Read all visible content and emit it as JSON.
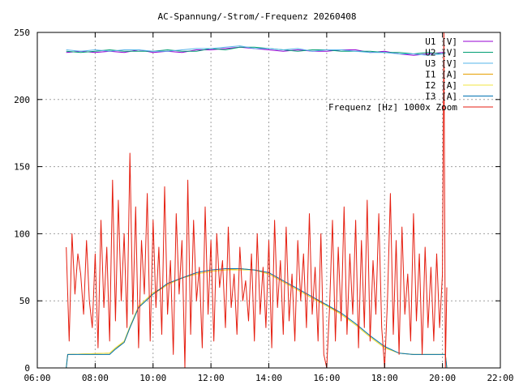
{
  "chart_data": {
    "type": "line",
    "title": "AC-Spannung/-Strom/-Frequenz 20260408",
    "xlabel": "",
    "ylabel": "",
    "xlim": [
      6,
      22
    ],
    "ylim": [
      0,
      250
    ],
    "grid": true,
    "legend_position": "top-right",
    "x_ticks": [
      {
        "value": 6,
        "label": "06:00"
      },
      {
        "value": 8,
        "label": "08:00"
      },
      {
        "value": 10,
        "label": "10:00"
      },
      {
        "value": 12,
        "label": "12:00"
      },
      {
        "value": 14,
        "label": "14:00"
      },
      {
        "value": 16,
        "label": "16:00"
      },
      {
        "value": 18,
        "label": "18:00"
      },
      {
        "value": 20,
        "label": "20:00"
      },
      {
        "value": 22,
        "label": "22:00"
      }
    ],
    "y_ticks": [
      {
        "value": 0,
        "label": "0"
      },
      {
        "value": 50,
        "label": "50"
      },
      {
        "value": 100,
        "label": "100"
      },
      {
        "value": 150,
        "label": "150"
      },
      {
        "value": 200,
        "label": "200"
      },
      {
        "value": 250,
        "label": "250"
      }
    ],
    "series": [
      {
        "name": "U1 [V]",
        "color": "#9400d3",
        "x": [
          7.0,
          7.5,
          8.0,
          8.5,
          9.0,
          9.5,
          10.0,
          10.5,
          11.0,
          11.5,
          12.0,
          12.5,
          13.0,
          13.5,
          14.0,
          14.5,
          15.0,
          15.5,
          16.0,
          16.5,
          17.0,
          17.5,
          18.0,
          18.5,
          19.0,
          19.5,
          20.0,
          20.1
        ],
        "y": [
          235,
          236,
          235,
          236,
          235,
          237,
          235,
          236,
          235,
          237,
          237,
          238,
          239,
          238,
          237,
          236,
          237,
          236,
          236,
          237,
          237,
          235,
          236,
          234,
          233,
          234,
          235,
          235
        ]
      },
      {
        "name": "U2 [V]",
        "color": "#009e73",
        "x": [
          7.0,
          7.5,
          8.0,
          8.5,
          9.0,
          9.5,
          10.0,
          10.5,
          11.0,
          11.5,
          12.0,
          12.5,
          13.0,
          13.5,
          14.0,
          14.5,
          15.0,
          15.5,
          16.0,
          16.5,
          17.0,
          17.5,
          18.0,
          18.5,
          19.0,
          19.5,
          20.0,
          20.1
        ],
        "y": [
          236,
          235,
          236,
          237,
          236,
          236,
          236,
          237,
          236,
          236,
          238,
          237,
          239,
          239,
          238,
          237,
          236,
          237,
          237,
          236,
          236,
          236,
          235,
          235,
          234,
          235,
          234,
          235
        ]
      },
      {
        "name": "U3 [V]",
        "color": "#56b4e9",
        "x": [
          7.0,
          7.5,
          8.0,
          8.5,
          9.0,
          9.5,
          10.0,
          10.5,
          11.0,
          11.5,
          12.0,
          12.5,
          13.0,
          13.5,
          14.0,
          14.5,
          15.0,
          15.5,
          16.0,
          16.5,
          17.0,
          17.5,
          18.0,
          18.5,
          19.0,
          19.5,
          20.0,
          20.1
        ],
        "y": [
          237,
          236,
          237,
          236,
          237,
          237,
          236,
          236,
          237,
          238,
          238,
          239,
          240,
          238,
          238,
          237,
          238,
          236,
          237,
          237,
          236,
          235,
          235,
          234,
          234,
          233,
          234,
          234
        ]
      },
      {
        "name": "I1 [A]",
        "color": "#e69f00",
        "x": [
          7.0,
          7.05,
          8.5,
          8.7,
          9.0,
          9.2,
          9.5,
          10.0,
          10.5,
          11.0,
          11.5,
          12.0,
          12.5,
          13.0,
          13.5,
          14.0,
          14.5,
          15.0,
          15.5,
          16.0,
          16.5,
          17.0,
          17.5,
          18.0,
          18.5,
          19.0,
          19.5,
          20.0,
          20.1,
          20.15
        ],
        "y": [
          0,
          10,
          11,
          15,
          19,
          30,
          45,
          55,
          62,
          67,
          70,
          72,
          73,
          74,
          73,
          70,
          64,
          58,
          52,
          47,
          40,
          32,
          23,
          15,
          11,
          10,
          10,
          10,
          10,
          0
        ]
      },
      {
        "name": "I2 [A]",
        "color": "#f0e442",
        "x": [
          7.0,
          7.05,
          8.5,
          8.7,
          9.0,
          9.2,
          9.5,
          10.0,
          10.5,
          11.0,
          11.5,
          12.0,
          12.5,
          13.0,
          13.5,
          14.0,
          14.5,
          15.0,
          15.5,
          16.0,
          16.5,
          17.0,
          17.5,
          18.0,
          18.5,
          19.0,
          19.5,
          20.0,
          20.1,
          20.15
        ],
        "y": [
          0,
          10,
          11,
          15,
          20,
          31,
          46,
          56,
          62,
          67,
          70,
          72,
          73,
          73,
          73,
          70,
          64,
          58,
          52,
          46,
          40,
          32,
          23,
          15,
          11,
          10,
          10,
          10,
          10,
          0
        ]
      },
      {
        "name": "I3 [A]",
        "color": "#0072b2",
        "x": [
          7.0,
          7.05,
          8.5,
          8.7,
          9.0,
          9.2,
          9.5,
          10.0,
          10.5,
          11.0,
          11.5,
          12.0,
          12.5,
          13.0,
          13.5,
          14.0,
          14.5,
          15.0,
          15.5,
          16.0,
          16.5,
          17.0,
          17.5,
          18.0,
          18.5,
          19.0,
          19.5,
          20.0,
          20.1,
          20.15
        ],
        "y": [
          0,
          10,
          10,
          14,
          19,
          30,
          45,
          55,
          63,
          67,
          71,
          73,
          74,
          74,
          73,
          71,
          65,
          59,
          53,
          47,
          41,
          33,
          24,
          16,
          11,
          10,
          10,
          10,
          10,
          0
        ]
      },
      {
        "name": "Frequenz [Hz] 1000x Zoom",
        "color": "#e51e10",
        "x": [
          7.0,
          7.1,
          7.2,
          7.3,
          7.4,
          7.5,
          7.6,
          7.7,
          7.8,
          7.9,
          8.0,
          8.1,
          8.2,
          8.3,
          8.4,
          8.5,
          8.6,
          8.7,
          8.8,
          8.9,
          9.0,
          9.1,
          9.2,
          9.3,
          9.4,
          9.5,
          9.6,
          9.7,
          9.8,
          9.9,
          10.0,
          10.1,
          10.2,
          10.3,
          10.4,
          10.5,
          10.6,
          10.7,
          10.8,
          10.9,
          11.0,
          11.1,
          11.2,
          11.3,
          11.4,
          11.5,
          11.6,
          11.7,
          11.8,
          11.9,
          12.0,
          12.1,
          12.2,
          12.3,
          12.4,
          12.5,
          12.6,
          12.7,
          12.8,
          12.9,
          13.0,
          13.1,
          13.2,
          13.3,
          13.4,
          13.5,
          13.6,
          13.7,
          13.8,
          13.9,
          14.0,
          14.1,
          14.2,
          14.3,
          14.4,
          14.5,
          14.6,
          14.7,
          14.8,
          14.9,
          15.0,
          15.1,
          15.2,
          15.3,
          15.4,
          15.5,
          15.6,
          15.7,
          15.8,
          15.9,
          16.0,
          16.1,
          16.2,
          16.3,
          16.4,
          16.5,
          16.6,
          16.7,
          16.8,
          16.9,
          17.0,
          17.1,
          17.2,
          17.3,
          17.4,
          17.5,
          17.6,
          17.7,
          17.8,
          17.9,
          18.0,
          18.1,
          18.2,
          18.3,
          18.4,
          18.5,
          18.6,
          18.7,
          18.8,
          18.9,
          19.0,
          19.1,
          19.2,
          19.3,
          19.4,
          19.5,
          19.6,
          19.7,
          19.8,
          19.9,
          20.0,
          20.05,
          20.1,
          20.15
        ],
        "y": [
          90,
          20,
          100,
          55,
          85,
          70,
          40,
          95,
          50,
          30,
          85,
          15,
          110,
          45,
          90,
          20,
          140,
          35,
          125,
          50,
          100,
          30,
          160,
          40,
          120,
          15,
          95,
          55,
          130,
          20,
          110,
          45,
          90,
          25,
          135,
          40,
          80,
          10,
          115,
          55,
          95,
          0,
          140,
          25,
          110,
          50,
          75,
          15,
          120,
          40,
          95,
          20,
          100,
          60,
          80,
          30,
          105,
          45,
          70,
          25,
          90,
          50,
          65,
          35,
          85,
          20,
          100,
          40,
          75,
          30,
          95,
          15,
          110,
          45,
          80,
          25,
          105,
          35,
          70,
          20,
          95,
          50,
          85,
          30,
          115,
          40,
          75,
          20,
          100,
          10,
          0,
          45,
          110,
          20,
          90,
          35,
          120,
          25,
          85,
          40,
          110,
          15,
          95,
          30,
          125,
          20,
          80,
          40,
          115,
          30,
          0,
          50,
          130,
          25,
          95,
          10,
          105,
          40,
          70,
          20,
          115,
          35,
          85,
          10,
          90,
          30,
          75,
          20,
          85,
          30,
          70,
          250,
          0,
          60
        ]
      }
    ]
  }
}
